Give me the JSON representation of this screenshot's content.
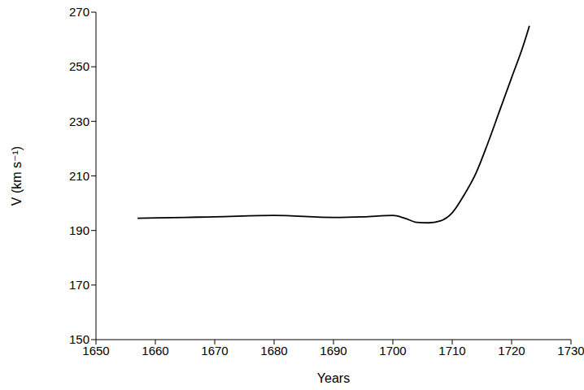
{
  "chart_data": {
    "type": "line",
    "x_label": "Years",
    "y_label": "V (km s⁻¹)",
    "x": [
      1657,
      1665,
      1670,
      1680,
      1690,
      1695,
      1700,
      1702,
      1704,
      1706,
      1708,
      1710,
      1712,
      1714,
      1716,
      1718,
      1720,
      1722,
      1723
    ],
    "values": [
      194.5,
      194.8,
      195,
      195.5,
      194.8,
      195,
      195.5,
      194.5,
      193,
      192.8,
      193.5,
      196.5,
      203,
      211,
      222,
      234,
      246,
      258,
      265
    ],
    "color": "#000000",
    "xlim": [
      1650,
      1730
    ],
    "xticks": [
      1650,
      1660,
      1670,
      1680,
      1690,
      1700,
      1710,
      1720,
      1730
    ],
    "ylim": [
      150,
      270
    ],
    "yticks": [
      150,
      170,
      190,
      210,
      230,
      250,
      270
    ],
    "grid": false
  }
}
